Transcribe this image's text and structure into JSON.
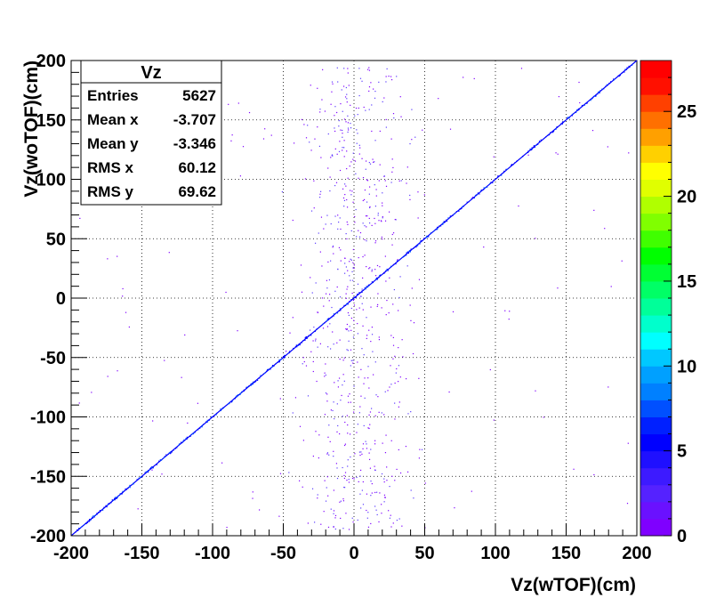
{
  "chart_data": {
    "type": "scatter",
    "title": "",
    "xlabel": "Vz(wTOF)(cm)",
    "ylabel": "Vz(woTOF)(cm)",
    "xlim": [
      -200,
      200
    ],
    "ylim": [
      -200,
      200
    ],
    "grid": true,
    "x_ticks": [
      -200,
      -150,
      -100,
      -50,
      0,
      50,
      100,
      150,
      200
    ],
    "y_ticks": [
      -200,
      -150,
      -100,
      -50,
      0,
      50,
      100,
      150,
      200
    ],
    "x_tick_labels": [
      "-200",
      "-150",
      "-100",
      "-50",
      "0",
      "50",
      "100",
      "150",
      "200"
    ],
    "y_tick_labels": [
      "-200",
      "-150",
      "-100",
      "-50",
      "0",
      "50",
      "100",
      "150",
      "200"
    ],
    "colorbar": {
      "min": 0,
      "max": 28,
      "ticks": [
        0,
        5,
        10,
        15,
        20,
        25
      ],
      "tick_labels": [
        "0",
        "5",
        "10",
        "15",
        "20",
        "25"
      ],
      "colors": [
        "#7f00ff",
        "#6a11ff",
        "#5522ff",
        "#3d1aff",
        "#1f10ff",
        "#0000ff",
        "#0020ff",
        "#0050ff",
        "#0080ff",
        "#00a0ff",
        "#00c8ff",
        "#00ffff",
        "#00ffcc",
        "#00ff99",
        "#00ff66",
        "#00ff33",
        "#00ff00",
        "#40ff00",
        "#80ff00",
        "#b0ff00",
        "#e0ff00",
        "#ffff00",
        "#ffd000",
        "#ffa000",
        "#ff7000",
        "#ff4000",
        "#ff1000",
        "#ff0000"
      ]
    },
    "stats": {
      "title": "Vz",
      "rows": [
        {
          "label": "Entries",
          "value": "5627"
        },
        {
          "label": "Mean x",
          "value": "-3.707"
        },
        {
          "label": "Mean y",
          "value": "-3.346"
        },
        {
          "label": "RMS x",
          "value": "60.12"
        },
        {
          "label": "RMS y",
          "value": "69.62"
        }
      ]
    },
    "series": [
      {
        "type": "diagonal",
        "x_range": [
          -200,
          200
        ],
        "slope": 1,
        "intercept": 0
      },
      {
        "type": "vertical-band",
        "x_center": 0,
        "x_spread": 25,
        "y_range": [
          -200,
          200
        ]
      }
    ]
  }
}
